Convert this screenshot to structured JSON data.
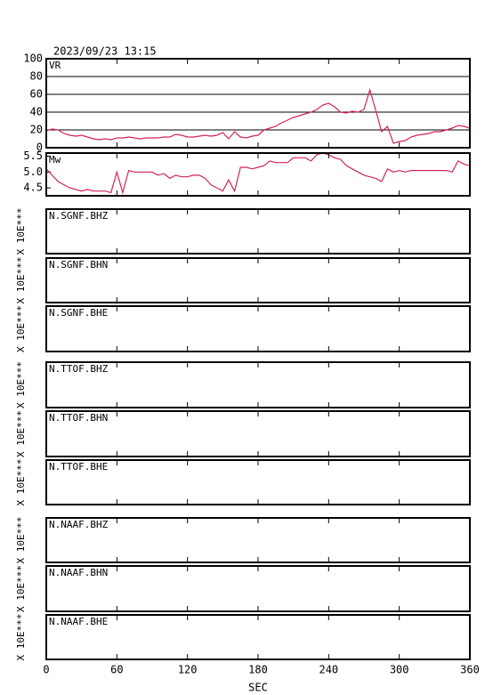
{
  "chart_data": [
    {
      "type": "line",
      "title": "2023/09/23 13:15",
      "label": "VR",
      "color": "#d0245a",
      "x": [
        0,
        5,
        10,
        15,
        20,
        25,
        30,
        35,
        40,
        45,
        50,
        55,
        60,
        65,
        70,
        75,
        80,
        85,
        90,
        95,
        100,
        105,
        110,
        115,
        120,
        125,
        130,
        135,
        140,
        145,
        150,
        155,
        160,
        165,
        170,
        175,
        180,
        185,
        190,
        195,
        200,
        205,
        210,
        215,
        220,
        225,
        230,
        235,
        240,
        245,
        250,
        255,
        260,
        265,
        270,
        275,
        280,
        285,
        290,
        295,
        300,
        305,
        310,
        315,
        320,
        325,
        330,
        335,
        340,
        345,
        350,
        355,
        360
      ],
      "values": [
        19,
        21,
        20,
        16,
        14,
        13,
        14,
        12,
        10,
        9,
        10,
        9,
        11,
        11,
        12,
        11,
        10,
        11,
        11,
        11,
        12,
        12,
        15,
        14,
        12,
        12,
        13,
        14,
        13,
        14,
        17,
        10,
        18,
        12,
        11,
        13,
        14,
        20,
        22,
        24,
        28,
        31,
        34,
        36,
        38,
        40,
        43,
        48,
        50,
        46,
        40,
        39,
        41,
        40,
        43,
        65,
        42,
        18,
        24,
        5,
        7,
        8,
        12,
        14,
        15,
        16,
        18,
        18,
        20,
        22,
        25,
        24,
        22
      ],
      "xlim": [
        0,
        360
      ],
      "xticks": [
        0,
        60,
        120,
        180,
        240,
        300,
        360
      ],
      "ylim": [
        0,
        100
      ],
      "yticks": [
        0,
        20,
        40,
        60,
        80,
        100
      ],
      "grid": true
    },
    {
      "type": "line",
      "label": "Mw",
      "color": "#d0245a",
      "x": [
        0,
        5,
        10,
        15,
        20,
        25,
        30,
        35,
        40,
        45,
        50,
        55,
        60,
        65,
        70,
        75,
        80,
        85,
        90,
        95,
        100,
        105,
        110,
        115,
        120,
        125,
        130,
        135,
        140,
        145,
        150,
        155,
        160,
        165,
        170,
        175,
        180,
        185,
        190,
        195,
        200,
        205,
        210,
        215,
        220,
        225,
        230,
        235,
        240,
        245,
        250,
        255,
        260,
        265,
        270,
        275,
        280,
        285,
        290,
        295,
        300,
        305,
        310,
        315,
        320,
        325,
        330,
        335,
        340,
        345,
        350,
        355,
        360
      ],
      "values": [
        5.1,
        4.9,
        4.7,
        4.6,
        4.5,
        4.45,
        4.4,
        4.45,
        4.4,
        4.4,
        4.4,
        4.35,
        5.0,
        4.35,
        5.05,
        5.0,
        5.0,
        5.0,
        5.0,
        4.9,
        4.95,
        4.8,
        4.9,
        4.85,
        4.85,
        4.9,
        4.9,
        4.8,
        4.6,
        4.5,
        4.4,
        4.75,
        4.4,
        5.15,
        5.15,
        5.1,
        5.15,
        5.2,
        5.35,
        5.3,
        5.3,
        5.3,
        5.45,
        5.45,
        5.45,
        5.35,
        5.55,
        5.6,
        5.55,
        5.45,
        5.4,
        5.2,
        5.1,
        5.0,
        4.9,
        4.85,
        4.8,
        4.7,
        5.1,
        5.0,
        5.05,
        5.0,
        5.05,
        5.05,
        5.05,
        5.05,
        5.05,
        5.05,
        5.05,
        5.0,
        5.35,
        5.25,
        5.2
      ],
      "xlim": [
        0,
        360
      ],
      "xticks": [
        0,
        60,
        120,
        180,
        240,
        300,
        360
      ],
      "ylim": [
        4.25,
        5.6
      ],
      "yticks": [
        4.5,
        {
          "value": 5,
          "label": "5.0"
        },
        5.5
      ]
    },
    {
      "type": "line",
      "label": "N.SGNF.BHZ",
      "ylabel": "X 10E***",
      "xlim": [
        0,
        360
      ],
      "xticks": [
        0,
        60,
        120,
        180,
        240,
        300,
        360
      ]
    },
    {
      "type": "line",
      "label": "N.SGNF.BHN",
      "ylabel": "X 10E***",
      "xlim": [
        0,
        360
      ],
      "xticks": [
        0,
        60,
        120,
        180,
        240,
        300,
        360
      ]
    },
    {
      "type": "line",
      "label": "N.SGNF.BHE",
      "ylabel": "X 10E***",
      "xlim": [
        0,
        360
      ],
      "xticks": [
        0,
        60,
        120,
        180,
        240,
        300,
        360
      ]
    },
    {
      "type": "line",
      "label": "N.TTOF.BHZ",
      "ylabel": "X 10E***",
      "xlim": [
        0,
        360
      ],
      "xticks": [
        0,
        60,
        120,
        180,
        240,
        300,
        360
      ]
    },
    {
      "type": "line",
      "label": "N.TTOF.BHN",
      "ylabel": "X 10E***",
      "xlim": [
        0,
        360
      ],
      "xticks": [
        0,
        60,
        120,
        180,
        240,
        300,
        360
      ]
    },
    {
      "type": "line",
      "label": "N.TTOF.BHE",
      "ylabel": "X 10E***",
      "xlim": [
        0,
        360
      ],
      "xticks": [
        0,
        60,
        120,
        180,
        240,
        300,
        360
      ]
    },
    {
      "type": "line",
      "label": "N.NAAF.BHZ",
      "ylabel": "X 10E***",
      "xlim": [
        0,
        360
      ],
      "xticks": [
        0,
        60,
        120,
        180,
        240,
        300,
        360
      ]
    },
    {
      "type": "line",
      "label": "N.NAAF.BHN",
      "ylabel": "X 10E***",
      "xlim": [
        0,
        360
      ],
      "xticks": [
        0,
        60,
        120,
        180,
        240,
        300,
        360
      ]
    },
    {
      "type": "line",
      "label": "N.NAAF.BHE",
      "ylabel": "X 10E***",
      "xlim": [
        0,
        360
      ],
      "xticks": [
        0,
        60,
        120,
        180,
        240,
        300,
        360
      ],
      "xlabel": "SEC"
    }
  ]
}
